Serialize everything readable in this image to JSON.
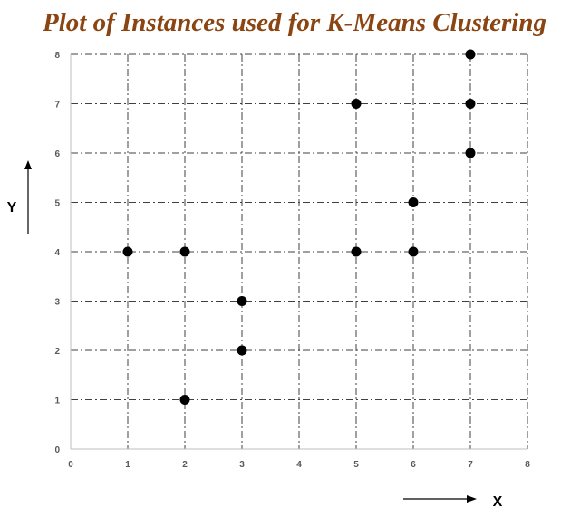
{
  "chart_data": {
    "type": "scatter",
    "title": "Plot of Instances used for K-Means Clustering",
    "xlabel": "X",
    "ylabel": "Y",
    "xlim": [
      0,
      8
    ],
    "ylim": [
      0,
      8
    ],
    "x_ticks": [
      0,
      1,
      2,
      3,
      4,
      5,
      6,
      7,
      8
    ],
    "y_ticks": [
      0,
      1,
      2,
      3,
      4,
      5,
      6,
      7,
      8
    ],
    "grid": true,
    "points": [
      {
        "x": 1,
        "y": 4
      },
      {
        "x": 2,
        "y": 4
      },
      {
        "x": 2,
        "y": 1
      },
      {
        "x": 3,
        "y": 3
      },
      {
        "x": 3,
        "y": 2
      },
      {
        "x": 5,
        "y": 7
      },
      {
        "x": 5,
        "y": 4
      },
      {
        "x": 6,
        "y": 5
      },
      {
        "x": 6,
        "y": 4
      },
      {
        "x": 7,
        "y": 8
      },
      {
        "x": 7,
        "y": 7
      },
      {
        "x": 7,
        "y": 6
      }
    ]
  },
  "colors": {
    "title": "#8B4513",
    "points": "#000000",
    "grid": "#404040",
    "axis": "#BFBFBF",
    "tick_labels": "#595959"
  }
}
